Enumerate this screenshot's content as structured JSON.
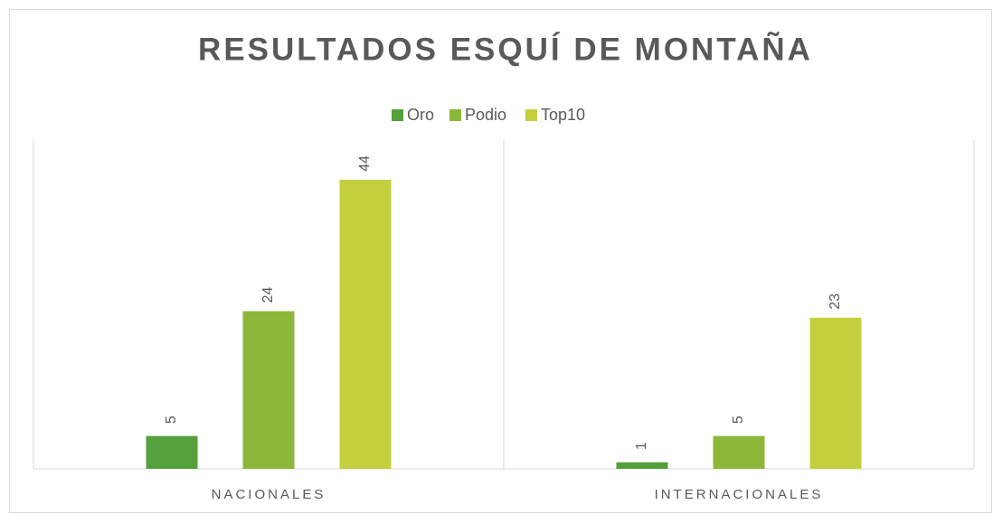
{
  "chart_data": {
    "type": "bar",
    "title": "RESULTADOS ESQUÍ DE MONTAÑA",
    "categories": [
      "NACIONALES",
      "INTERNACIONALES"
    ],
    "series": [
      {
        "name": "Oro",
        "color": "#54a03a",
        "values": [
          5,
          1
        ]
      },
      {
        "name": "Podio",
        "color": "#8cb83a",
        "values": [
          24,
          5
        ]
      },
      {
        "name": "Top10",
        "color": "#c3cf3d",
        "values": [
          44,
          23
        ]
      }
    ],
    "legend": "top",
    "data_labels": true
  }
}
